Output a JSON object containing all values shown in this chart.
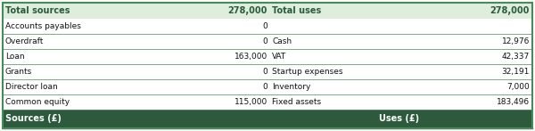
{
  "header_bg": "#2d5a3d",
  "header_text_color": "#ffffff",
  "total_row_bg": "#ddeedd",
  "total_text_color": "#2d5a3d",
  "border_color": "#4a8a5a",
  "sources": [
    [
      "Common equity",
      "115,000"
    ],
    [
      "Director loan",
      "0"
    ],
    [
      "Grants",
      "0"
    ],
    [
      "Loan",
      "163,000"
    ],
    [
      "Overdraft",
      "0"
    ],
    [
      "Accounts payables",
      "0"
    ]
  ],
  "uses": [
    [
      "Fixed assets",
      "183,496"
    ],
    [
      "Inventory",
      "7,000"
    ],
    [
      "Startup expenses",
      "32,191"
    ],
    [
      "VAT",
      "42,337"
    ],
    [
      "Cash",
      "12,976"
    ],
    [
      "",
      ""
    ]
  ],
  "header_left": "Sources (£)",
  "header_right": "Uses (£)",
  "total_sources_label": "Total sources",
  "total_sources_value": "278,000",
  "total_uses_label": "Total uses",
  "total_uses_value": "278,000",
  "figwidth": 6.0,
  "figheight": 1.47,
  "dpi": 100
}
